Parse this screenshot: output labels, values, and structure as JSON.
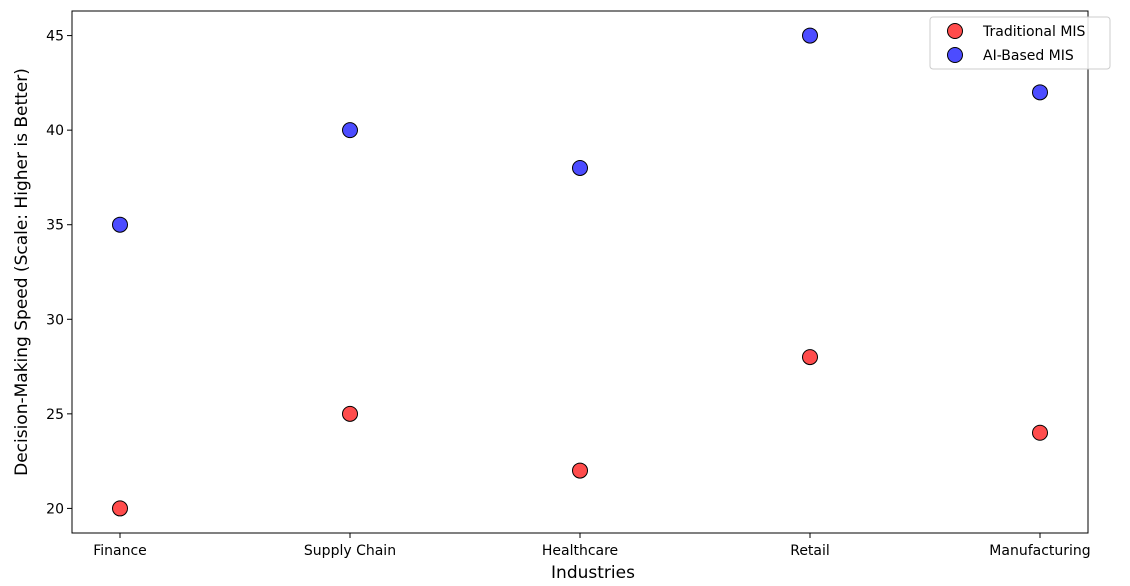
{
  "chart_data": {
    "type": "scatter",
    "title": "",
    "xlabel": "Industries",
    "ylabel": "Decision-Making Speed (Scale: Higher is Better)",
    "categories": [
      "Finance",
      "Supply Chain",
      "Healthcare",
      "Retail",
      "Manufacturing"
    ],
    "ylim": [
      18.7,
      46.3
    ],
    "yticks": [
      20,
      25,
      30,
      35,
      40,
      45
    ],
    "grid": false,
    "legend_position": "top-right",
    "series": [
      {
        "name": "Traditional MIS",
        "color": "#ff0000",
        "values": [
          20,
          25,
          22,
          28,
          24
        ]
      },
      {
        "name": "AI-Based MIS",
        "color": "#0000ff",
        "values": [
          35,
          40,
          38,
          45,
          42
        ]
      }
    ]
  }
}
